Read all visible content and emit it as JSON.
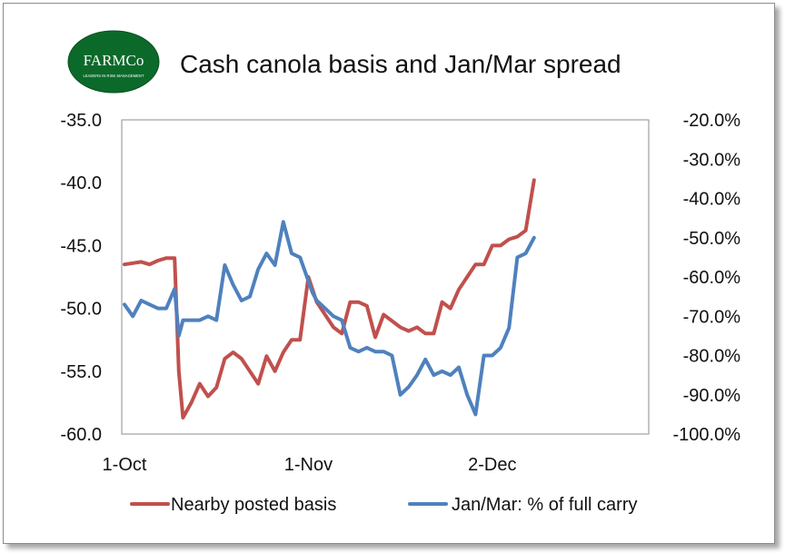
{
  "logo": {
    "name": "FARMCo",
    "tagline": "LEADERS IN RISK MANAGEMENT",
    "bg_color": "#0b6a2a",
    "text_color": "#ffffff"
  },
  "chart_data": {
    "type": "line",
    "title": "Cash canola basis and Jan/Mar spread",
    "xlabel": "",
    "x_tick_labels": [
      "1-Oct",
      "1-Nov",
      "2-Dec"
    ],
    "x_tick_index": [
      0,
      22,
      44
    ],
    "y_left": {
      "lim": [
        -60,
        -35
      ],
      "ticks": [
        -35,
        -40,
        -45,
        -50,
        -55,
        -60
      ],
      "tick_labels": [
        "-35.0",
        "-40.0",
        "-45.0",
        "-50.0",
        "-55.0",
        "-60.0"
      ]
    },
    "y_right": {
      "lim": [
        -100,
        -20
      ],
      "ticks": [
        -20,
        -30,
        -40,
        -50,
        -60,
        -70,
        -80,
        -90,
        -100
      ],
      "tick_labels": [
        "-20.0%",
        "-30.0%",
        "-40.0%",
        "-50.0%",
        "-60.0%",
        "-70.0%",
        "-80.0%",
        "-90.0%",
        "-100.0%"
      ]
    },
    "grid": false,
    "legend_position": "bottom",
    "series": [
      {
        "name": "Nearby posted basis",
        "axis": "left",
        "color": "#c0504d",
        "x": [
          0,
          1,
          2,
          3,
          4,
          5,
          6,
          6.5,
          7,
          8,
          9,
          10,
          11,
          12,
          13,
          14,
          15,
          16,
          17,
          18,
          19,
          20,
          21,
          22,
          22.5,
          23,
          24,
          25,
          26,
          27,
          28,
          29,
          30,
          31,
          32,
          33,
          34,
          35,
          36,
          37,
          38,
          39,
          40,
          41,
          42,
          43,
          44,
          45,
          46,
          47,
          48,
          49
        ],
        "values": [
          -46.5,
          -46.4,
          -46.3,
          -46.5,
          -46.2,
          -46.0,
          -46.0,
          -55.0,
          -58.7,
          -57.5,
          -56.0,
          -57.0,
          -56.3,
          -54.0,
          -53.5,
          -54.0,
          -55.0,
          -56.0,
          -53.8,
          -55.0,
          -53.5,
          -52.5,
          -52.5,
          -47.5,
          -48.5,
          -49.5,
          -50.5,
          -51.5,
          -52.0,
          -49.5,
          -49.5,
          -49.8,
          -52.3,
          -50.5,
          -51.0,
          -51.5,
          -51.8,
          -51.5,
          -52.0,
          -52.0,
          -49.5,
          -50.0,
          -48.5,
          -47.5,
          -46.5,
          -46.5,
          -45.0,
          -45.0,
          -44.5,
          -44.3,
          -43.8,
          -39.8
        ]
      },
      {
        "name": "Jan/Mar: % of full carry",
        "axis": "right",
        "color": "#4f81bd",
        "x": [
          0,
          1,
          2,
          3,
          4,
          5,
          6,
          6.5,
          7,
          8,
          9,
          10,
          11,
          12,
          13,
          14,
          15,
          16,
          17,
          18,
          19,
          20,
          21,
          22,
          22.5,
          23,
          24,
          25,
          26,
          27,
          28,
          29,
          30,
          31,
          32,
          33,
          34,
          35,
          36,
          37,
          38,
          39,
          40,
          41,
          42,
          43,
          44,
          45,
          46,
          47,
          48,
          49
        ],
        "values": [
          -67,
          -70,
          -66,
          -67,
          -68,
          -68,
          -63,
          -75,
          -71,
          -71,
          -71,
          -70,
          -71,
          -57,
          -62,
          -66,
          -65,
          -58,
          -54,
          -57,
          -46,
          -54,
          -55,
          -61,
          -64,
          -66,
          -68,
          -70,
          -71,
          -78,
          -79,
          -78,
          -79,
          -79,
          -80,
          -90,
          -88,
          -85,
          -81,
          -85,
          -84,
          -85,
          -83,
          -90,
          -95,
          -80,
          -80,
          -78,
          -73,
          -55,
          -54,
          -50
        ]
      }
    ]
  }
}
